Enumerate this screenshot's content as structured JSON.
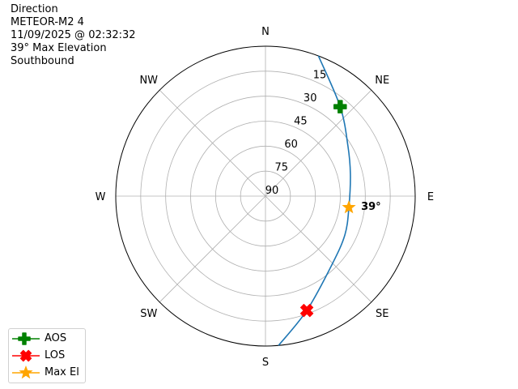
{
  "chart_data": {
    "type": "polar",
    "title_lines": [
      "Direction",
      "METEOR-M2 4",
      "11/09/2025 @ 02:32:32",
      "39° Max Elevation",
      "Southbound"
    ],
    "direction_labels": [
      {
        "label": "N",
        "az": 0
      },
      {
        "label": "NE",
        "az": 45
      },
      {
        "label": "E",
        "az": 90
      },
      {
        "label": "SE",
        "az": 135
      },
      {
        "label": "S",
        "az": 180
      },
      {
        "label": "SW",
        "az": 225
      },
      {
        "label": "W",
        "az": 270
      },
      {
        "label": "NW",
        "az": 315
      }
    ],
    "elevation_rings": [
      15,
      30,
      45,
      60,
      75,
      90
    ],
    "elevation_range": [
      0,
      90
    ],
    "radial_axis": "elevation inverted (90 at center, 0 at edge)",
    "grid": true,
    "track": {
      "color": "#1f77b4",
      "points_az_el": [
        [
          20.7,
          0
        ],
        [
          39.9,
          20
        ],
        [
          58.7,
          32
        ],
        [
          75.6,
          37.3
        ],
        [
          97.7,
          39.4
        ],
        [
          116,
          36.9
        ],
        [
          136,
          32.6
        ],
        [
          160.1,
          17
        ],
        [
          175,
          0
        ]
      ]
    },
    "markers": [
      {
        "name": "AOS",
        "az": 39.9,
        "el": 20,
        "color": "#008000",
        "shape": "plus"
      },
      {
        "name": "LOS",
        "az": 160.1,
        "el": 17,
        "color": "#ff0000",
        "shape": "x"
      },
      {
        "name": "Max El",
        "az": 97.7,
        "el": 39.4,
        "color": "#ffa500",
        "shape": "star"
      }
    ],
    "annotation": {
      "text": "39°",
      "az": 97.7,
      "el": 39.4
    },
    "legend": {
      "placement": "bottom-left",
      "entries": [
        "AOS",
        "LOS",
        "Max El"
      ]
    }
  }
}
